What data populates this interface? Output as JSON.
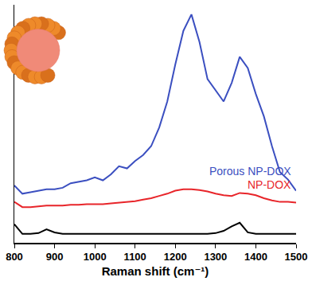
{
  "chart_data": {
    "type": "line",
    "x_label": "Raman shift (cm⁻¹)",
    "x": [
      800,
      820,
      840,
      860,
      880,
      900,
      920,
      940,
      960,
      980,
      1000,
      1020,
      1040,
      1060,
      1080,
      1100,
      1120,
      1140,
      1160,
      1180,
      1200,
      1220,
      1240,
      1260,
      1280,
      1300,
      1320,
      1340,
      1360,
      1380,
      1400,
      1420,
      1440,
      1460,
      1480,
      1500
    ],
    "series": [
      {
        "name": "Porous NP-DOX",
        "color": "#3b4fc0",
        "values": [
          77,
          66,
          68,
          70,
          72,
          72,
          74,
          80,
          82,
          84,
          88,
          84,
          92,
          103,
          100,
          110,
          118,
          130,
          155,
          190,
          240,
          285,
          307,
          270,
          220,
          205,
          190,
          215,
          250,
          235,
          200,
          170,
          130,
          95,
          85,
          70
        ]
      },
      {
        "name": "NP-DOX",
        "color": "#e8252a",
        "values": [
          55,
          48,
          48,
          49,
          50,
          50,
          50,
          51,
          51,
          52,
          52,
          52,
          53,
          54,
          55,
          56,
          58,
          60,
          63,
          66,
          70,
          72,
          72,
          71,
          69,
          66,
          64,
          63,
          67,
          66,
          64,
          60,
          57,
          55,
          55,
          54
        ]
      },
      {
        "color": "#000000",
        "values": [
          25,
          12,
          12,
          13,
          18,
          14,
          12,
          12,
          12,
          12,
          12,
          12,
          12,
          12,
          12,
          12,
          12,
          12,
          12,
          12,
          12,
          12,
          12,
          12,
          12,
          13,
          16,
          22,
          27,
          14,
          12,
          12,
          12,
          12,
          12,
          12
        ]
      }
    ],
    "xlim": [
      800,
      1500
    ],
    "xticks": [
      800,
      900,
      1000,
      1100,
      1200,
      1300,
      1400,
      1500
    ],
    "ylim": [
      0,
      320
    ],
    "tick_labels": "x",
    "grid": false
  }
}
